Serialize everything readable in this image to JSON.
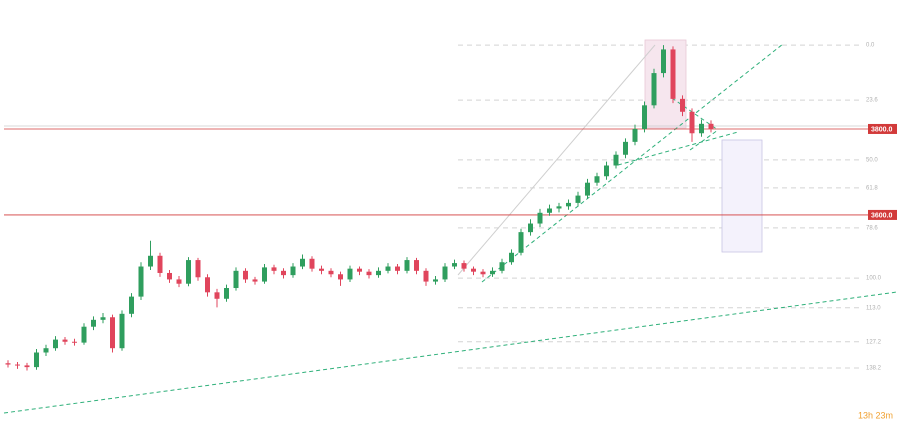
{
  "chart_data": {
    "type": "candlestick",
    "up_color": "#2f9e5e",
    "down_color": "#e0455c",
    "ylim": [
      3116,
      4100
    ],
    "candles": [
      [
        3255,
        3262,
        3245,
        3252
      ],
      [
        3252,
        3258,
        3242,
        3250
      ],
      [
        3250,
        3256,
        3238,
        3246
      ],
      [
        3246,
        3288,
        3240,
        3280
      ],
      [
        3280,
        3298,
        3272,
        3290
      ],
      [
        3290,
        3318,
        3284,
        3310
      ],
      [
        3310,
        3316,
        3298,
        3305
      ],
      [
        3305,
        3312,
        3296,
        3303
      ],
      [
        3303,
        3348,
        3298,
        3340
      ],
      [
        3340,
        3364,
        3332,
        3356
      ],
      [
        3356,
        3372,
        3348,
        3362
      ],
      [
        3362,
        3368,
        3280,
        3290
      ],
      [
        3290,
        3378,
        3284,
        3370
      ],
      [
        3370,
        3418,
        3362,
        3410
      ],
      [
        3410,
        3490,
        3402,
        3480
      ],
      [
        3480,
        3540,
        3472,
        3505
      ],
      [
        3505,
        3512,
        3456,
        3465
      ],
      [
        3465,
        3472,
        3442,
        3450
      ],
      [
        3450,
        3458,
        3432,
        3440
      ],
      [
        3440,
        3502,
        3434,
        3495
      ],
      [
        3495,
        3500,
        3447,
        3455
      ],
      [
        3455,
        3462,
        3410,
        3420
      ],
      [
        3420,
        3428,
        3385,
        3405
      ],
      [
        3405,
        3438,
        3398,
        3430
      ],
      [
        3430,
        3478,
        3424,
        3470
      ],
      [
        3470,
        3476,
        3442,
        3450
      ],
      [
        3450,
        3456,
        3438,
        3445
      ],
      [
        3445,
        3486,
        3440,
        3478
      ],
      [
        3478,
        3484,
        3462,
        3470
      ],
      [
        3470,
        3476,
        3452,
        3460
      ],
      [
        3460,
        3488,
        3454,
        3480
      ],
      [
        3480,
        3508,
        3474,
        3498
      ],
      [
        3498,
        3504,
        3468,
        3475
      ],
      [
        3475,
        3482,
        3462,
        3470
      ],
      [
        3470,
        3476,
        3455,
        3462
      ],
      [
        3462,
        3468,
        3435,
        3450
      ],
      [
        3450,
        3482,
        3444,
        3475
      ],
      [
        3475,
        3480,
        3460,
        3468
      ],
      [
        3468,
        3474,
        3452,
        3460
      ],
      [
        3460,
        3478,
        3454,
        3470
      ],
      [
        3470,
        3488,
        3464,
        3480
      ],
      [
        3480,
        3486,
        3462,
        3470
      ],
      [
        3470,
        3502,
        3464,
        3495
      ],
      [
        3495,
        3500,
        3462,
        3470
      ],
      [
        3470,
        3476,
        3435,
        3445
      ],
      [
        3445,
        3458,
        3438,
        3450
      ],
      [
        3450,
        3488,
        3444,
        3480
      ],
      [
        3480,
        3496,
        3474,
        3488
      ],
      [
        3488,
        3494,
        3468,
        3475
      ],
      [
        3475,
        3480,
        3460,
        3468
      ],
      [
        3468,
        3474,
        3455,
        3462
      ],
      [
        3462,
        3478,
        3456,
        3470
      ],
      [
        3470,
        3498,
        3464,
        3490
      ],
      [
        3490,
        3520,
        3484,
        3512
      ],
      [
        3512,
        3568,
        3506,
        3560
      ],
      [
        3560,
        3590,
        3552,
        3580
      ],
      [
        3580,
        3614,
        3572,
        3605
      ],
      [
        3605,
        3624,
        3598,
        3615
      ],
      [
        3615,
        3628,
        3606,
        3620
      ],
      [
        3620,
        3636,
        3612,
        3628
      ],
      [
        3628,
        3654,
        3620,
        3645
      ],
      [
        3645,
        3684,
        3638,
        3675
      ],
      [
        3675,
        3698,
        3668,
        3690
      ],
      [
        3690,
        3724,
        3682,
        3715
      ],
      [
        3715,
        3748,
        3708,
        3740
      ],
      [
        3740,
        3778,
        3732,
        3770
      ],
      [
        3770,
        3810,
        3762,
        3800
      ],
      [
        3800,
        3864,
        3792,
        3855
      ],
      [
        3855,
        3940,
        3848,
        3930
      ],
      [
        3930,
        3995,
        3920,
        3985
      ],
      [
        3985,
        3992,
        3860,
        3870
      ],
      [
        3870,
        3878,
        3830,
        3840
      ],
      [
        3840,
        3848,
        3770,
        3790
      ],
      [
        3790,
        3822,
        3782,
        3812
      ],
      [
        3812,
        3820,
        3792,
        3800
      ]
    ],
    "price_lines": [
      {
        "value": 3800,
        "label": "3800.0",
        "color": "#d23a3a"
      },
      {
        "value": 3600,
        "label": "3600.0",
        "color": "#d23a3a"
      }
    ],
    "fib_levels": [
      {
        "value": 3995,
        "label": "0.0"
      },
      {
        "value": 3867,
        "label": "23.6"
      },
      {
        "value": 3728,
        "label": "50.0"
      },
      {
        "value": 3663,
        "label": "61.8"
      },
      {
        "value": 3570,
        "label": "78.6"
      },
      {
        "value": 3453,
        "label": "100.0"
      },
      {
        "value": 3384,
        "label": "113.0"
      },
      {
        "value": 3305,
        "label": "127.2"
      },
      {
        "value": 3244,
        "label": "138.2"
      }
    ],
    "countdown": "13h 23m"
  }
}
